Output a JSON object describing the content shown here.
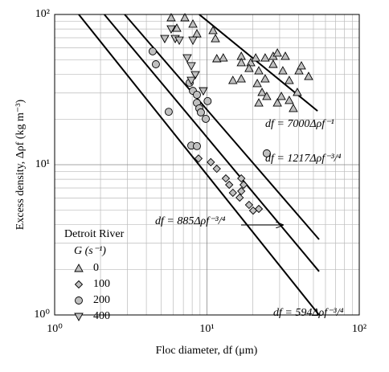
{
  "chart_data": {
    "type": "scatter",
    "xlabel": "Floc diameter, df (μm)",
    "ylabel": "Excess density, Δρf (kg m⁻³)",
    "xscale": "log",
    "yscale": "log",
    "xlim": [
      1,
      100
    ],
    "ylim": [
      1,
      100
    ],
    "xticks": [
      {
        "value": 1,
        "label": "10⁰"
      },
      {
        "value": 10,
        "label": "10¹"
      },
      {
        "value": 100,
        "label": "10²"
      }
    ],
    "yticks": [
      {
        "value": 1,
        "label": "10⁰"
      },
      {
        "value": 10,
        "label": "10¹"
      },
      {
        "value": 100,
        "label": "10²"
      }
    ],
    "xminorticks": [
      2,
      3,
      4,
      5,
      6,
      7,
      8,
      9,
      20,
      30,
      40,
      50,
      60,
      70,
      80,
      90
    ],
    "yminorticks": [
      2,
      3,
      4,
      5,
      6,
      7,
      8,
      9,
      20,
      30,
      40,
      50,
      60,
      70,
      80,
      90
    ],
    "grid": true,
    "legend_title": "Detroit River",
    "legend_subtitle": "G (s⁻¹)",
    "legend_position": "lower left",
    "series": [
      {
        "name": "0",
        "marker": "triangle-up",
        "color": "#c0c0c0",
        "x": [
          7.16,
          8.09,
          8.59,
          10.96,
          11.36,
          12.8,
          16.8,
          19.4,
          20.9,
          21.9,
          24.1,
          27.2,
          29.0,
          31.5,
          14.8,
          16.8,
          18.9,
          21.4,
          24.1,
          23.0,
          21.9,
          29.0,
          30.8,
          34.7,
          34.7,
          39.2,
          40.2,
          46.5,
          16.8,
          32.7,
          41.7,
          11.6,
          27.2,
          36.9,
          24.7,
          5.82,
          6.34
        ],
        "values": [
          95.2,
          86.3,
          74.4,
          78.2,
          69.1,
          51.4,
          52.7,
          47.8,
          51.4,
          42.2,
          51.4,
          52.7,
          55.4,
          42.2,
          36.4,
          37.3,
          43.8,
          34.7,
          37.3,
          30.3,
          25.8,
          25.8,
          28.5,
          26.8,
          36.4,
          30.3,
          42.2,
          38.7,
          47.8,
          52.7,
          45.5,
          50.8,
          46.6,
          23.7,
          28.5,
          95.2,
          81.1
        ]
      },
      {
        "name": "100",
        "marker": "diamond",
        "color": "#c0c0c0",
        "x": [
          8.8,
          10.6,
          11.6,
          13.3,
          14.0,
          14.8,
          16.8,
          17.4,
          16.4,
          18.9,
          20.1,
          21.9,
          16.8
        ],
        "values": [
          11.0,
          10.4,
          9.4,
          8.11,
          7.35,
          6.5,
          6.67,
          7.35,
          6.04,
          5.4,
          4.95,
          5.08,
          8.11
        ]
      },
      {
        "name": "200",
        "marker": "circle",
        "color": "#c0c0c0",
        "x": [
          4.4,
          4.62,
          5.61,
          7.7,
          8.09,
          8.59,
          8.91,
          9.12,
          10.1,
          9.82,
          7.89,
          8.59,
          24.7,
          8.59
        ],
        "values": [
          56.8,
          46.6,
          22.5,
          35.1,
          31.0,
          25.8,
          23.7,
          22.3,
          26.5,
          20.2,
          13.4,
          13.3,
          11.9,
          29.2
        ]
      },
      {
        "name": "400",
        "marker": "triangle-down",
        "color": "#c0c0c0",
        "x": [
          5.82,
          6.19,
          6.58,
          7.42,
          7.89,
          8.38,
          9.46,
          8.09,
          5.28,
          7.89
        ],
        "values": [
          80.1,
          69.1,
          67.4,
          51.4,
          45.5,
          39.7,
          31.0,
          67.4,
          69.1,
          36.4
        ]
      }
    ],
    "lines": [
      {
        "x": [
          8.9,
          53.2
        ],
        "values": [
          100,
          22.8
        ]
      },
      {
        "x": [
          2.88,
          54.5
        ],
        "values": [
          100,
          3.18
        ]
      },
      {
        "x": [
          2.12,
          54.5
        ],
        "values": [
          100,
          1.95
        ]
      },
      {
        "x": [
          1.44,
          54.5
        ],
        "values": [
          100,
          1
        ]
      }
    ],
    "annotations": [
      "df = 7000Δρf⁻¹",
      "df = 1217Δρf⁻³/⁴",
      "df = 885Δρf⁻³/⁴",
      "df = 594Δρf⁻³/⁴"
    ]
  }
}
